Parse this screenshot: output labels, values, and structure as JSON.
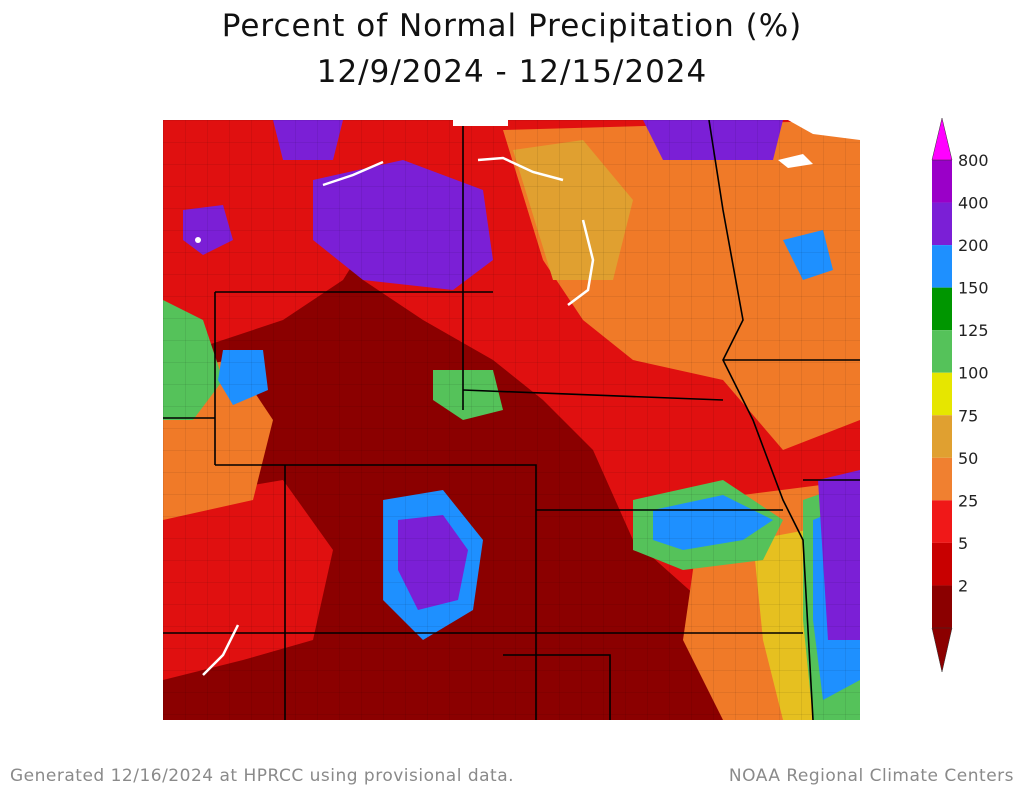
{
  "title": {
    "line1": "Percent of Normal Precipitation (%)",
    "line2": "12/9/2024 - 12/15/2024"
  },
  "legend": {
    "levels": [
      {
        "value": "800",
        "color": "#9a00c8"
      },
      {
        "value": "400",
        "color": "#7b1fd6"
      },
      {
        "value": "200",
        "color": "#1e90ff"
      },
      {
        "value": "150",
        "color": "#009600"
      },
      {
        "value": "125",
        "color": "#55c25a"
      },
      {
        "value": "100",
        "color": "#e6e600"
      },
      {
        "value": "75",
        "color": "#e0a030"
      },
      {
        "value": "50",
        "color": "#f08030"
      },
      {
        "value": "25",
        "color": "#f01818"
      },
      {
        "value": "5",
        "color": "#c80000"
      },
      {
        "value": "2",
        "color": "#8b0000"
      }
    ],
    "top_arrow_color": "#ff00ff",
    "bottom_arrow_color": "#8b0000"
  },
  "footer": {
    "left": "Generated 12/16/2024 at HPRCC using provisional data.",
    "right": "NOAA Regional Climate Centers"
  }
}
